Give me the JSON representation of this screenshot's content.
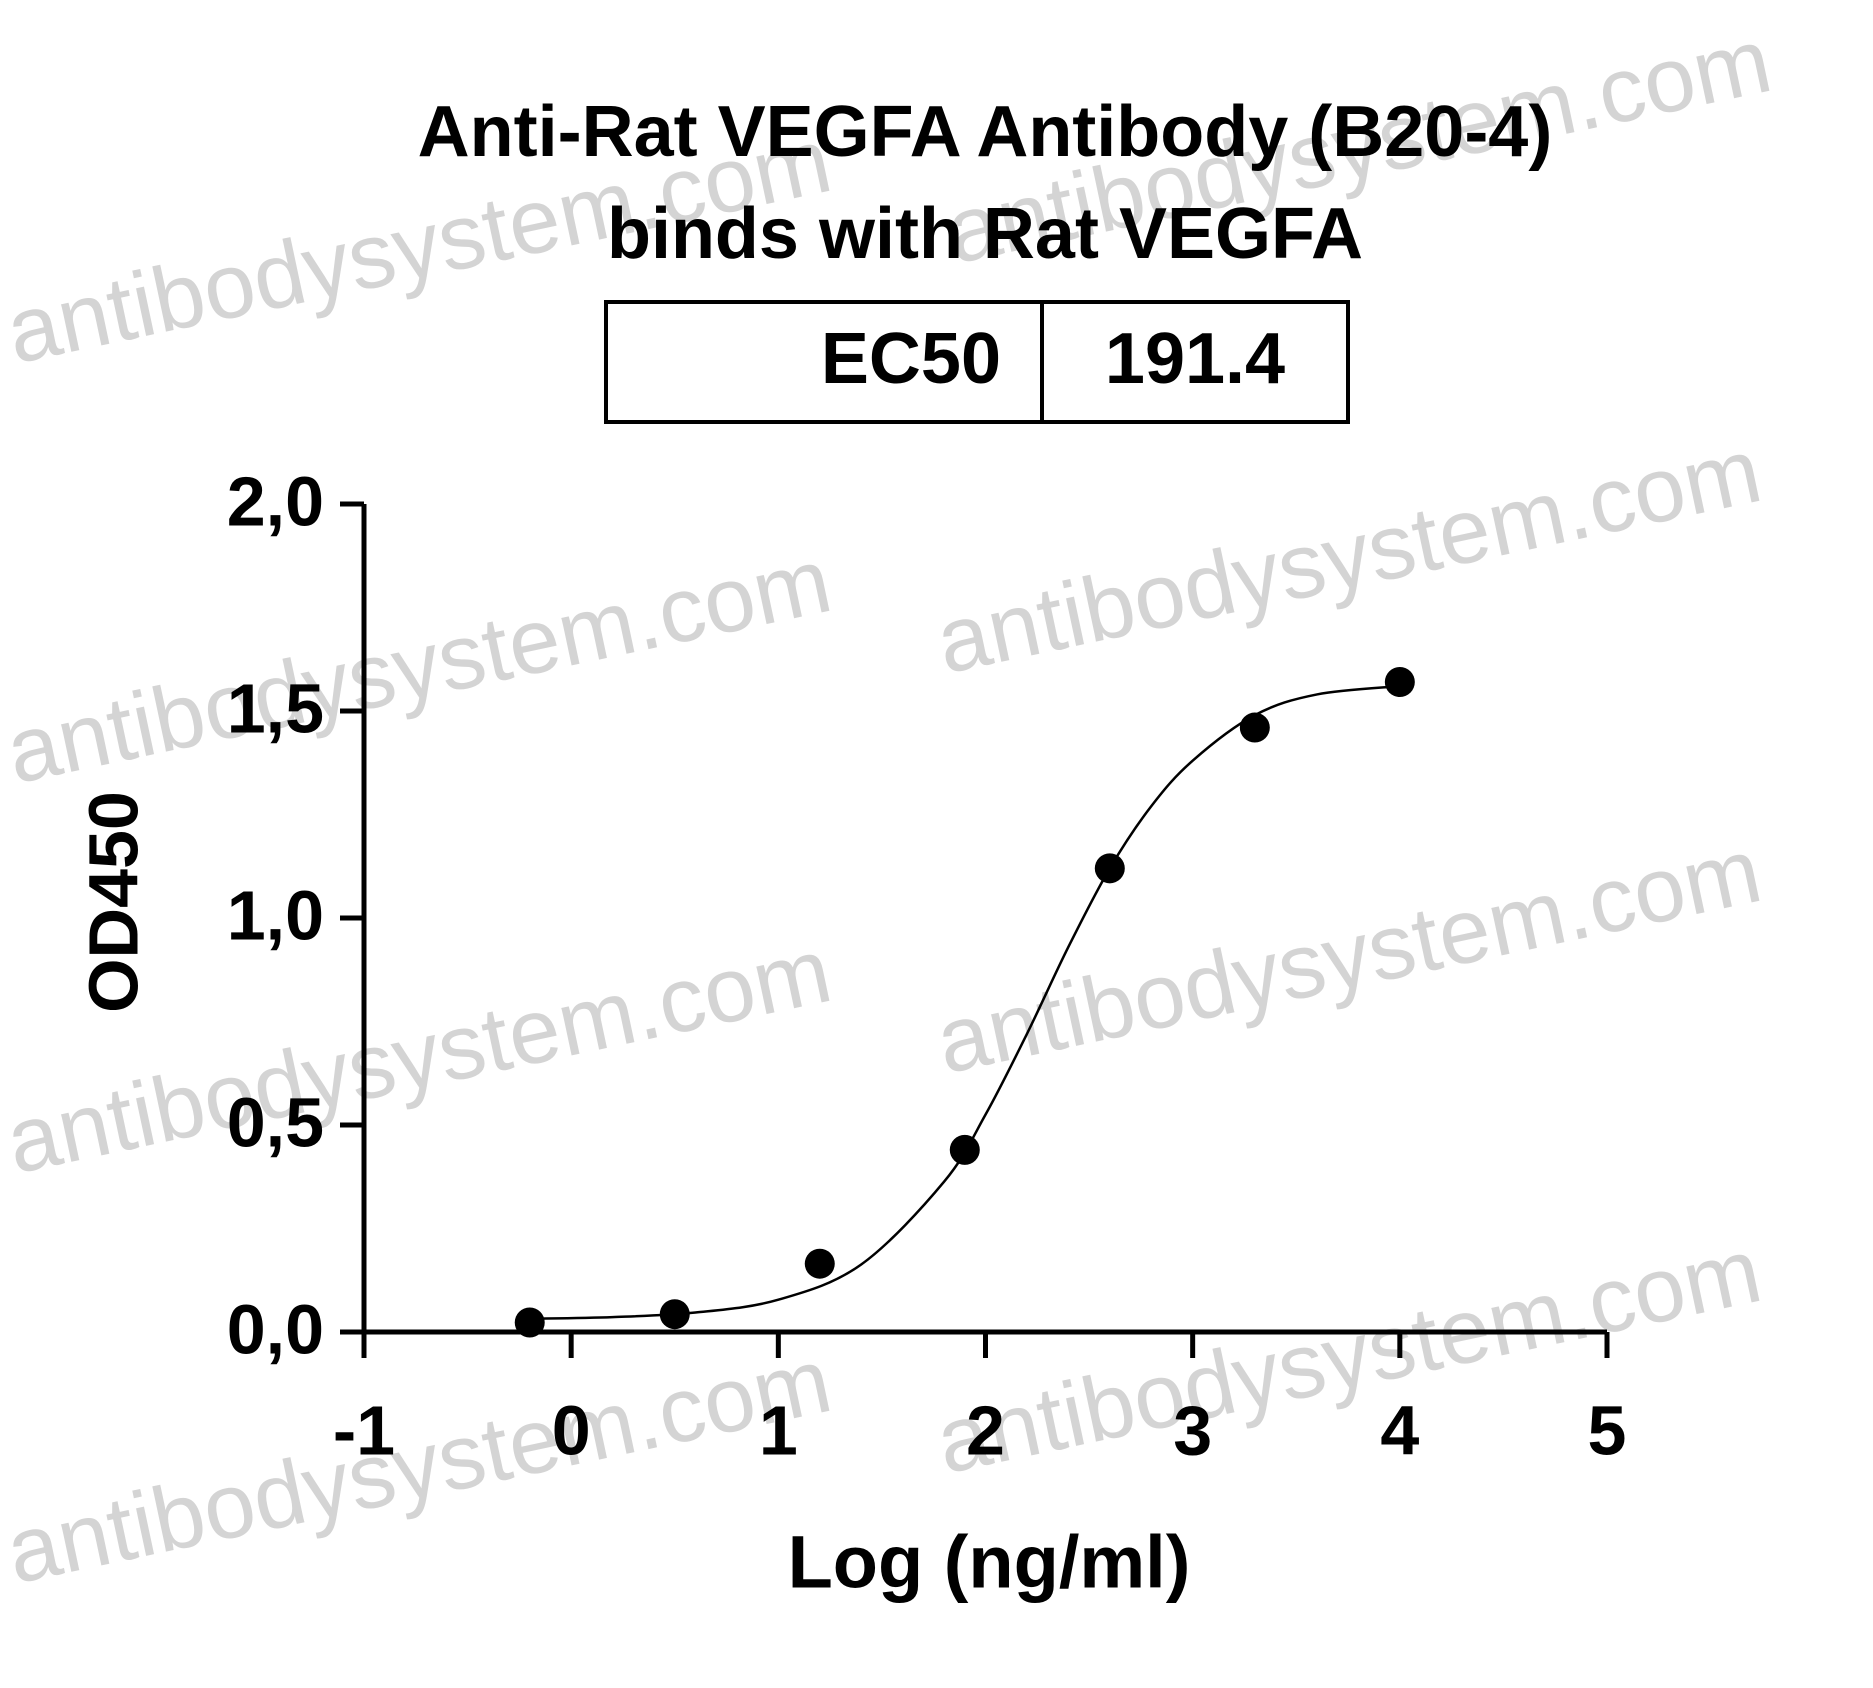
{
  "chart_data": {
    "type": "scatter",
    "title": [
      "Anti-Rat VEGFA Antibody (B20-4)",
      "binds with Rat VEGFA"
    ],
    "table": {
      "label": "EC50",
      "value": 191.4
    },
    "watermark": "antibodysystem.com",
    "x_label": "Log (ng/ml)",
    "y_label": "OD450",
    "x": [
      -0.2,
      0.5,
      1.2,
      1.9,
      2.6,
      3.3,
      4.0
    ],
    "values": [
      0.023,
      0.043,
      0.165,
      0.44,
      1.12,
      1.46,
      1.57
    ],
    "color": "#000000",
    "fit": {
      "type": "line",
      "color": "#000000",
      "x": [
        -0.2,
        0.2,
        0.6,
        1.0,
        1.4,
        1.8,
        2.0,
        2.2,
        2.4,
        2.6,
        2.8,
        3.0,
        3.3,
        3.6,
        4.0
      ],
      "values": [
        0.032,
        0.036,
        0.047,
        0.078,
        0.163,
        0.363,
        0.525,
        0.72,
        0.93,
        1.12,
        1.27,
        1.38,
        1.49,
        1.54,
        1.56
      ]
    },
    "xlim": [
      -1,
      5
    ],
    "xticks": [
      -1,
      0,
      1,
      2,
      3,
      4,
      5
    ],
    "ylim": [
      0,
      2
    ],
    "yticks": [
      {
        "value": 0,
        "label": "0,0"
      },
      {
        "value": 0.5,
        "label": "0,5"
      },
      {
        "value": 1,
        "label": "1,0"
      },
      {
        "value": 1.5,
        "label": "1,5"
      },
      {
        "value": 2,
        "label": "2,0"
      }
    ]
  }
}
